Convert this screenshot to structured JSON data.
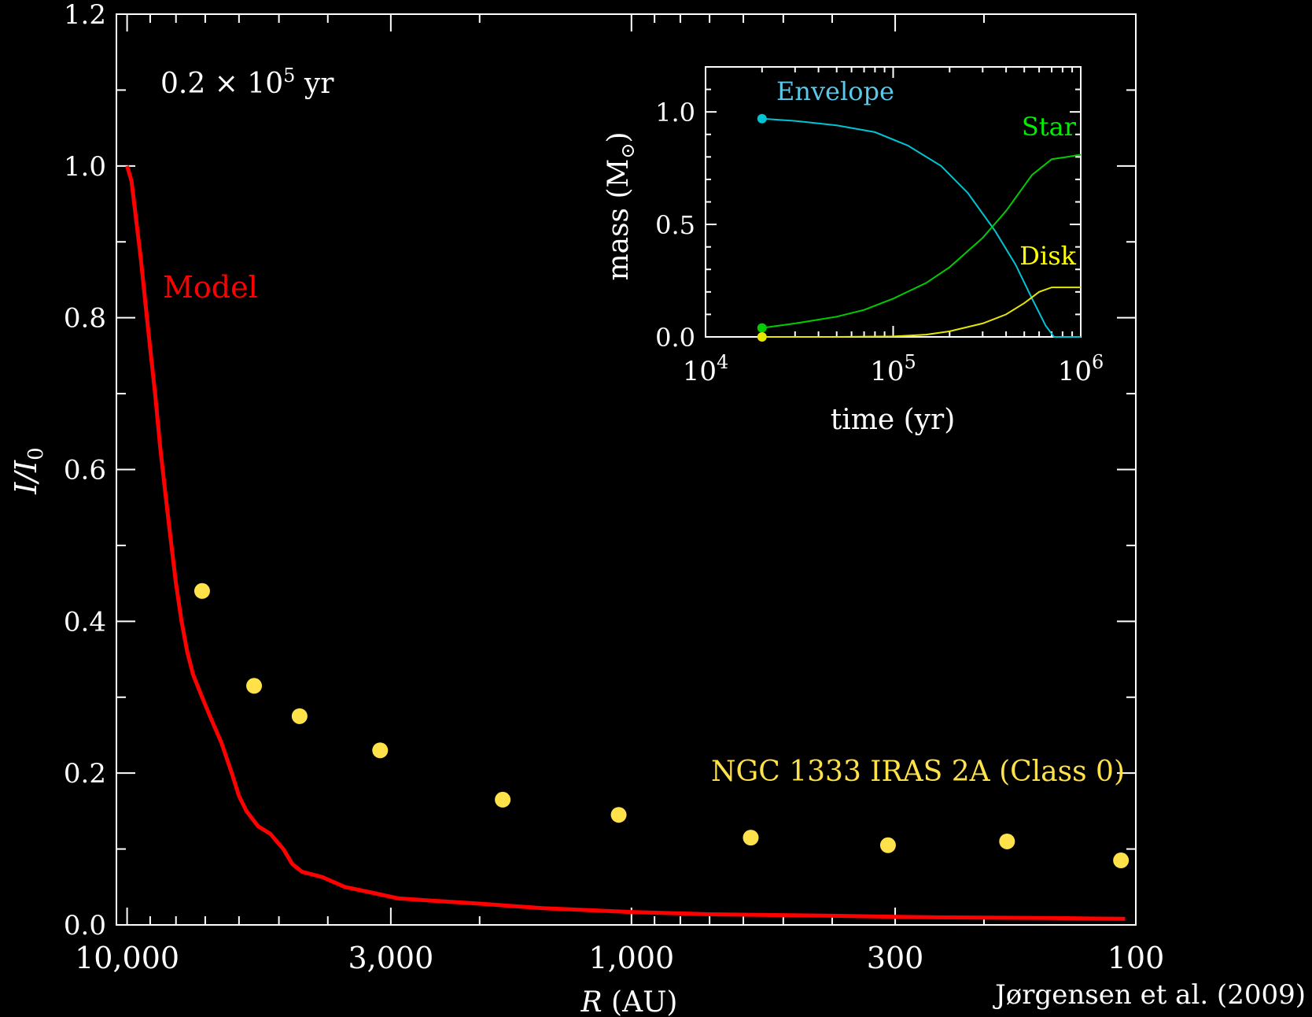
{
  "chart_data": [
    {
      "type": "line",
      "xlabel_italic": "R",
      "xlabel_rest": " (AU)",
      "ylabel_italic": "I/I",
      "ylabel_sub": "0",
      "x_scale": "log",
      "x_reversed": true,
      "xlim": [
        10500,
        100
      ],
      "ylim": [
        0,
        1.2
      ],
      "xtick_values": [
        10000,
        3000,
        1000,
        300,
        100
      ],
      "xtick_labels": [
        "10,000",
        "3,000",
        "1,000",
        "300",
        "100"
      ],
      "ytick_values": [
        0,
        0.2,
        0.4,
        0.6,
        0.8,
        1.0,
        1.2
      ],
      "ytick_labels": [
        "0.0",
        "0.2",
        "0.4",
        "0.6",
        "0.8",
        "1.0",
        "1.2"
      ],
      "time_label": "0.2 × 10",
      "time_label_exp": "5",
      "time_label_unit": " yr",
      "credit": "Jørgensen et al. (2009)",
      "series": [
        {
          "name": "Model",
          "color": "#ff0000",
          "points": [
            [
              10000,
              1.0
            ],
            [
              9800,
              0.98
            ],
            [
              9600,
              0.93
            ],
            [
              9400,
              0.88
            ],
            [
              9200,
              0.82
            ],
            [
              9000,
              0.76
            ],
            [
              8800,
              0.7
            ],
            [
              8600,
              0.63
            ],
            [
              8400,
              0.57
            ],
            [
              8200,
              0.51
            ],
            [
              8000,
              0.45
            ],
            [
              7800,
              0.4
            ],
            [
              7600,
              0.36
            ],
            [
              7400,
              0.33
            ],
            [
              7100,
              0.3
            ],
            [
              6800,
              0.27
            ],
            [
              6500,
              0.24
            ],
            [
              6200,
              0.2
            ],
            [
              6000,
              0.17
            ],
            [
              5800,
              0.15
            ],
            [
              5500,
              0.13
            ],
            [
              5200,
              0.12
            ],
            [
              4900,
              0.1
            ],
            [
              4700,
              0.08
            ],
            [
              4500,
              0.07
            ],
            [
              4100,
              0.063
            ],
            [
              3700,
              0.05
            ],
            [
              3300,
              0.043
            ],
            [
              2900,
              0.035
            ],
            [
              2500,
              0.032
            ],
            [
              2000,
              0.028
            ],
            [
              1500,
              0.022
            ],
            [
              1000,
              0.017
            ],
            [
              700,
              0.014
            ],
            [
              400,
              0.012
            ],
            [
              250,
              0.01
            ],
            [
              150,
              0.009
            ],
            [
              105,
              0.008
            ]
          ]
        },
        {
          "name": "NGC 1333 IRAS 2A (Class 0)",
          "color": "#ffe24a",
          "points": [
            [
              7100,
              0.44
            ],
            [
              5600,
              0.315
            ],
            [
              4550,
              0.275
            ],
            [
              3150,
              0.23
            ],
            [
              1800,
              0.165
            ],
            [
              1060,
              0.145
            ],
            [
              580,
              0.115
            ],
            [
              310,
              0.105
            ],
            [
              180,
              0.11
            ],
            [
              107,
              0.085
            ]
          ]
        }
      ]
    },
    {
      "type": "line",
      "xlabel": "time (yr)",
      "ylabel": "mass (M",
      "ylabel_sym": "⊙",
      "ylabel_close": ")",
      "x_scale": "log",
      "xlim": [
        10000,
        1000000
      ],
      "ylim": [
        0,
        1.2
      ],
      "xtick_values": [
        10000,
        100000,
        1000000
      ],
      "xtick_base": "10",
      "xtick_exps": [
        "4",
        "5",
        "6"
      ],
      "ytick_values": [
        0,
        0.5,
        1.0
      ],
      "ytick_labels": [
        "0.0",
        "0.5",
        "1.0"
      ],
      "series": [
        {
          "name": "Envelope",
          "color": "#00c4d4",
          "label_color": "#5bc8e8",
          "points": [
            [
              20000,
              0.97
            ],
            [
              30000,
              0.96
            ],
            [
              50000,
              0.94
            ],
            [
              80000,
              0.91
            ],
            [
              120000,
              0.85
            ],
            [
              180000,
              0.76
            ],
            [
              250000,
              0.64
            ],
            [
              350000,
              0.47
            ],
            [
              450000,
              0.32
            ],
            [
              550000,
              0.17
            ],
            [
              650000,
              0.05
            ],
            [
              720000,
              0.0
            ],
            [
              1000000,
              0.0
            ]
          ]
        },
        {
          "name": "Star",
          "color": "#00cc00",
          "label_color": "#00ee00",
          "points": [
            [
              20000,
              0.04
            ],
            [
              30000,
              0.06
            ],
            [
              50000,
              0.09
            ],
            [
              70000,
              0.12
            ],
            [
              100000,
              0.17
            ],
            [
              150000,
              0.24
            ],
            [
              200000,
              0.31
            ],
            [
              300000,
              0.44
            ],
            [
              400000,
              0.56
            ],
            [
              550000,
              0.72
            ],
            [
              700000,
              0.79
            ],
            [
              850000,
              0.8
            ],
            [
              1000000,
              0.81
            ]
          ]
        },
        {
          "name": "Disk",
          "color": "#e6e600",
          "label_color": "#ffff00",
          "points": [
            [
              20000,
              0.0
            ],
            [
              50000,
              0.0
            ],
            [
              100000,
              0.002
            ],
            [
              150000,
              0.01
            ],
            [
              200000,
              0.025
            ],
            [
              300000,
              0.06
            ],
            [
              400000,
              0.1
            ],
            [
              500000,
              0.15
            ],
            [
              600000,
              0.2
            ],
            [
              700000,
              0.22
            ],
            [
              850000,
              0.22
            ],
            [
              1000000,
              0.22
            ]
          ]
        }
      ]
    }
  ]
}
